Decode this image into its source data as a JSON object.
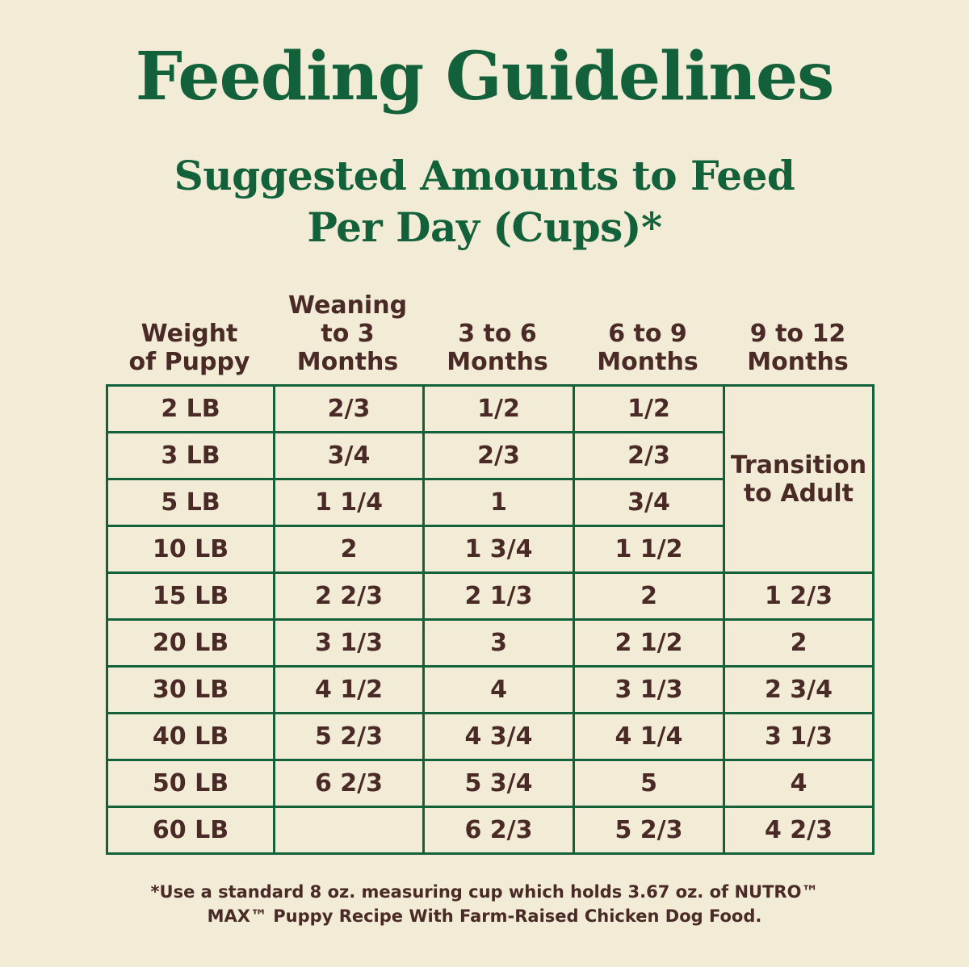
{
  "title": "Feeding Guidelines",
  "subtitle_line1": "Suggested Amounts to Feed",
  "subtitle_line2": "Per Day (Cups)*",
  "table": {
    "headers": [
      "Weight\nof Puppy",
      "Weaning\nto 3\nMonths",
      "3 to 6\nMonths",
      "6 to 9\nMonths",
      "9 to 12\nMonths"
    ],
    "rows": [
      [
        "2 LB",
        "2/3",
        "1/2",
        "1/2"
      ],
      [
        "3 LB",
        "3/4",
        "2/3",
        "2/3"
      ],
      [
        "5 LB",
        "1 1/4",
        "1",
        "3/4"
      ],
      [
        "10 LB",
        "2",
        "1 3/4",
        "1 1/2"
      ],
      [
        "15 LB",
        "2 2/3",
        "2 1/3",
        "2",
        "1 2/3"
      ],
      [
        "20 LB",
        "3 1/3",
        "3",
        "2 1/2",
        "2"
      ],
      [
        "30 LB",
        "4 1/2",
        "4",
        "3 1/3",
        "2 3/4"
      ],
      [
        "40 LB",
        "5 2/3",
        "4 3/4",
        "4 1/4",
        "3 1/3"
      ],
      [
        "50 LB",
        "6 2/3",
        "5 3/4",
        "5",
        "4"
      ],
      [
        "60 LB",
        "",
        "6 2/3",
        "5 2/3",
        "4 2/3"
      ]
    ],
    "transition_note": "Transition\nto Adult"
  },
  "footnote_line1": "*Use a standard 8 oz. measuring cup which holds 3.67 oz. of NUTRO™",
  "footnote_line2": "MAX™ Puppy Recipe With Farm-Raised Chicken Dog Food.",
  "colors": {
    "background": "#f2ebd6",
    "green": "#13613a",
    "brown": "#4a2a26"
  }
}
